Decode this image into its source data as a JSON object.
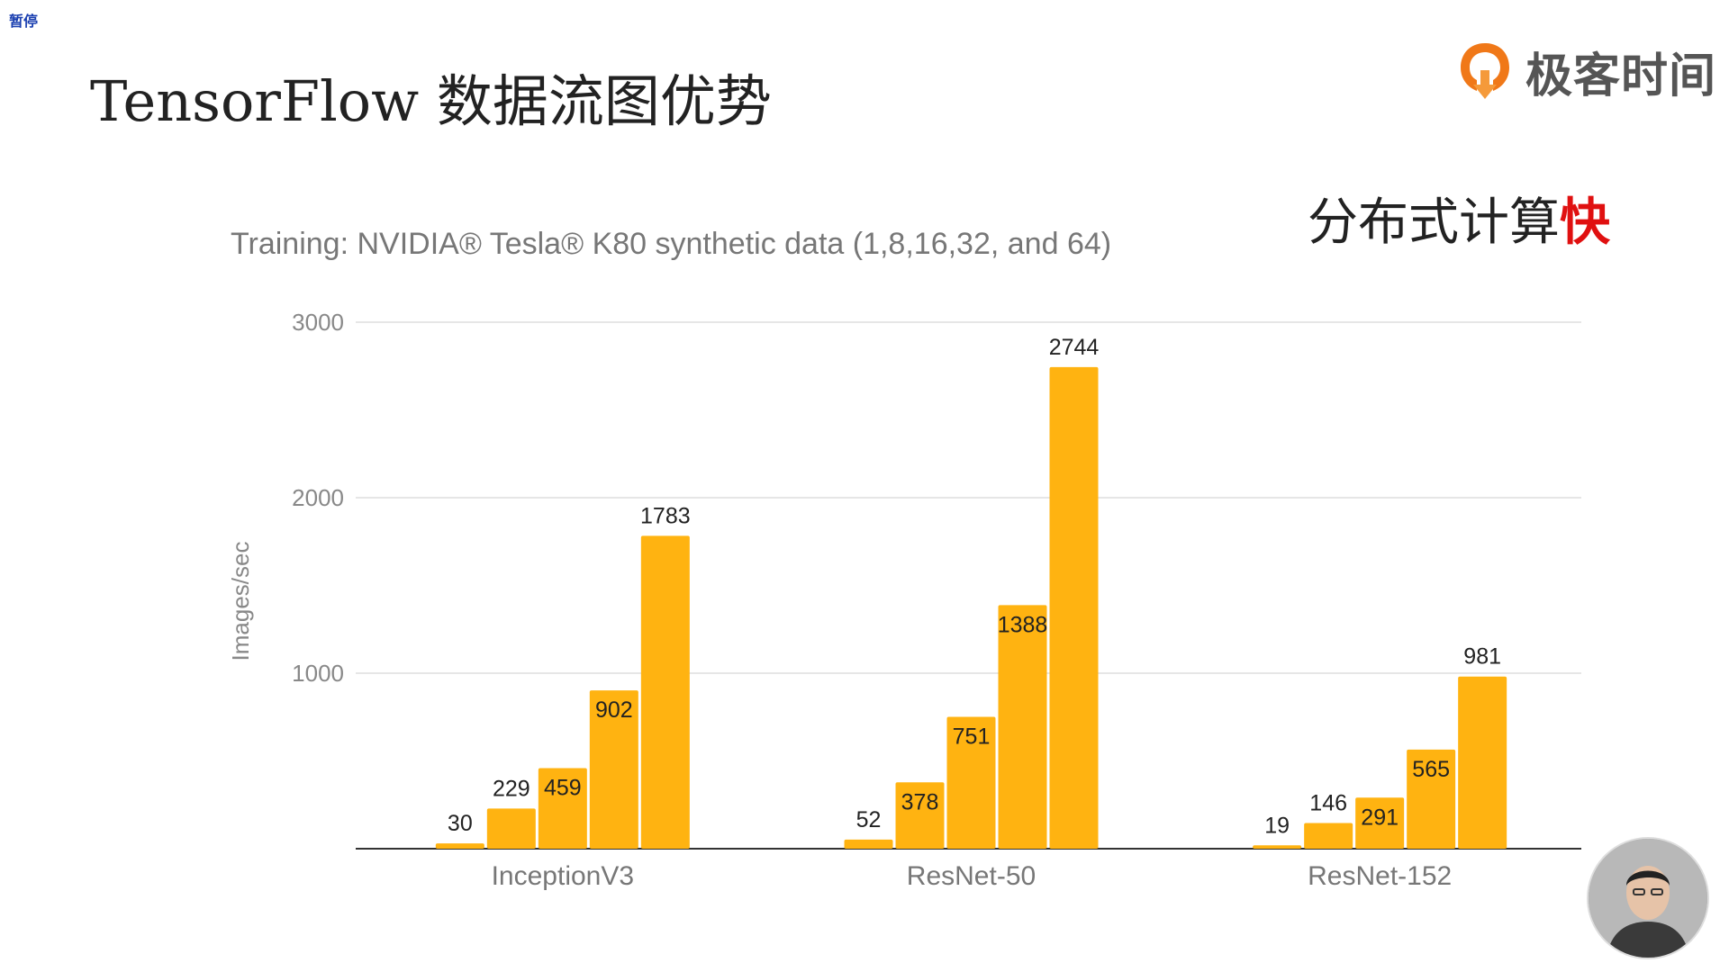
{
  "overlay": {
    "pause_label": "暂停"
  },
  "slide": {
    "title": "TensorFlow 数据流图优势",
    "slogan_prefix": "分布式计算",
    "slogan_accent": "快"
  },
  "brand": {
    "name": "极客时间",
    "logo": "geektime-logo-icon",
    "accent_color": "#f07818"
  },
  "colors": {
    "bar": "#ffb311",
    "grid": "#dddddd",
    "axis": "#333333"
  },
  "chart_data": {
    "type": "bar",
    "title": "Training: NVIDIA® Tesla® K80 synthetic data (1,8,16,32, and 64)",
    "xlabel": "",
    "ylabel": "Images/sec",
    "ylim": [
      0,
      3000
    ],
    "yticks": [
      "1000",
      "2000",
      "3000"
    ],
    "grid": true,
    "categories": [
      "InceptionV3",
      "ResNet-50",
      "ResNet-152"
    ],
    "groups": [
      {
        "category": "InceptionV3",
        "values": [
          30,
          229,
          459,
          902,
          1783
        ],
        "labels": [
          "30",
          "229",
          "459",
          "902",
          "1783"
        ]
      },
      {
        "category": "ResNet-50",
        "values": [
          52,
          378,
          751,
          1388,
          2744
        ],
        "labels": [
          "52",
          "378",
          "751",
          "1388",
          "2744"
        ]
      },
      {
        "category": "ResNet-152",
        "values": [
          19,
          146,
          291,
          565,
          981
        ],
        "labels": [
          "19",
          "146",
          "291",
          "565",
          "981"
        ]
      }
    ]
  },
  "presenter": {
    "avatar": "presenter-avatar"
  }
}
